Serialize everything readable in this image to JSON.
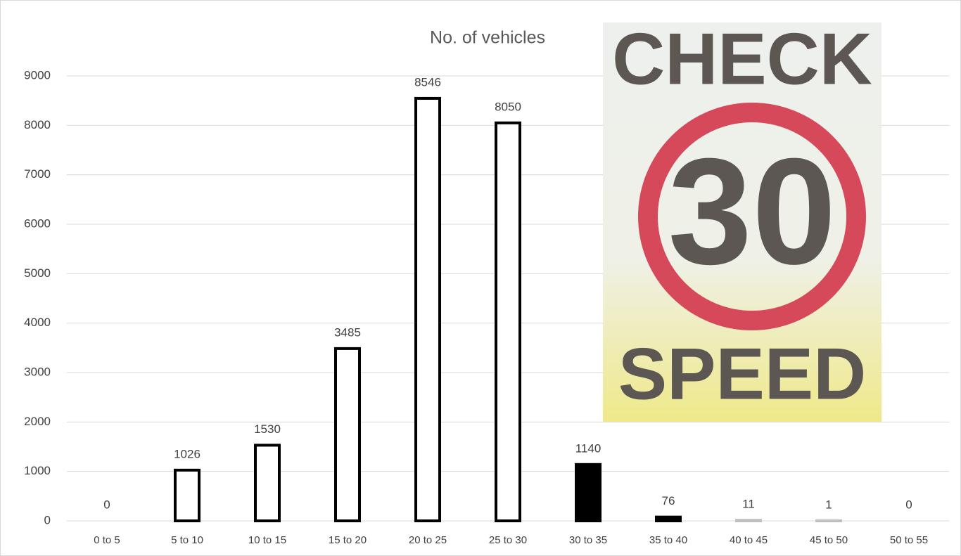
{
  "chart_data": {
    "type": "bar",
    "title": "No. of vehicles",
    "categories": [
      "0 to 5",
      "5 to 10",
      "10 to 15",
      "15 to 20",
      "20 to 25",
      "25 to 30",
      "30 to 35",
      "35 to 40",
      "40 to 45",
      "45 to 50",
      "50 to 55"
    ],
    "values": [
      0,
      1026,
      1530,
      3485,
      8546,
      8050,
      1140,
      76,
      11,
      1,
      0
    ],
    "colors": [
      "#ffffff",
      "#ffffff",
      "#ffffff",
      "#ffffff",
      "#ffffff",
      "#ffffff",
      "#000000",
      "#000000",
      "#bfbfbf",
      "#bfbfbf",
      "#ffffff"
    ],
    "edgecolors": [
      "#000000",
      "#000000",
      "#000000",
      "#000000",
      "#000000",
      "#000000",
      "#000000",
      "#000000",
      "#bfbfbf",
      "#bfbfbf",
      "#000000"
    ],
    "ylim": [
      0,
      9000
    ],
    "yticks": [
      0,
      1000,
      2000,
      3000,
      4000,
      5000,
      6000,
      7000,
      8000,
      9000
    ],
    "grid": true,
    "sign": {
      "top": "CHECK",
      "number": "30",
      "bottom": "SPEED"
    }
  }
}
